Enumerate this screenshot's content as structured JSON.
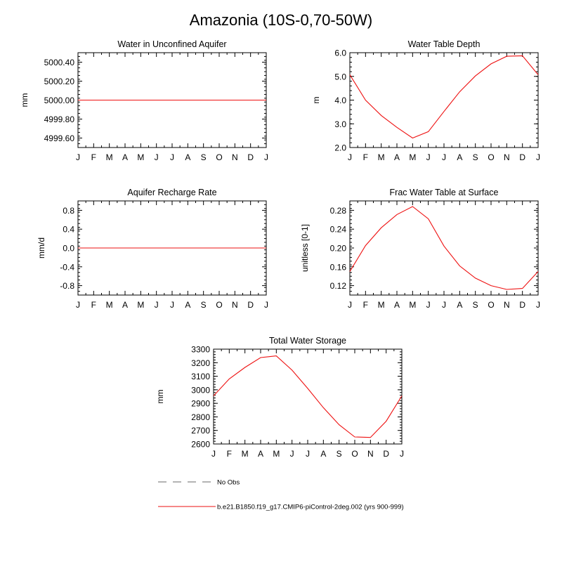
{
  "title": "Amazonia (10S-0,70-50W)",
  "colors": {
    "model": "#ee1111",
    "obs": "#888888",
    "axis": "#000000"
  },
  "chart_data": [
    {
      "type": "line",
      "title": "Water in Unconfined Aquifer",
      "ylabel": "mm",
      "ylim": [
        4999.5,
        5000.5
      ],
      "yticks": [
        "4999.60",
        "4999.80",
        "5000.00",
        "5000.20",
        "5000.40"
      ],
      "categories": [
        "J",
        "F",
        "M",
        "A",
        "M",
        "J",
        "J",
        "A",
        "S",
        "O",
        "N",
        "D",
        "J"
      ],
      "series": [
        {
          "values": [
            5000,
            5000,
            5000,
            5000,
            5000,
            5000,
            5000,
            5000,
            5000,
            5000,
            5000,
            5000,
            5000
          ]
        }
      ]
    },
    {
      "type": "line",
      "title": "Water Table Depth",
      "ylabel": "m",
      "ylim": [
        2.0,
        6.0
      ],
      "yticks": [
        "2.0",
        "3.0",
        "4.0",
        "5.0",
        "6.0"
      ],
      "categories": [
        "J",
        "F",
        "M",
        "A",
        "M",
        "J",
        "J",
        "A",
        "S",
        "O",
        "N",
        "D",
        "J"
      ],
      "series": [
        {
          "values": [
            5.07,
            4.0,
            3.35,
            2.85,
            2.4,
            2.67,
            3.52,
            4.35,
            5.02,
            5.53,
            5.85,
            5.87,
            5.07
          ]
        }
      ]
    },
    {
      "type": "line",
      "title": "Aquifer Recharge Rate",
      "ylabel": "mm/d",
      "ylim": [
        -1.0,
        1.0
      ],
      "yticks": [
        "-0.8",
        "-0.4",
        "0.0",
        "0.4",
        "0.8"
      ],
      "categories": [
        "J",
        "F",
        "M",
        "A",
        "M",
        "J",
        "J",
        "A",
        "S",
        "O",
        "N",
        "D",
        "J"
      ],
      "series": [
        {
          "values": [
            0,
            0,
            0,
            0,
            0,
            0,
            0,
            0,
            0,
            0,
            0,
            0,
            0
          ]
        }
      ]
    },
    {
      "type": "line",
      "title": "Frac Water Table at Surface",
      "ylabel": "unitless [0-1]",
      "ylim": [
        0.1,
        0.3
      ],
      "yticks": [
        "0.12",
        "0.16",
        "0.20",
        "0.24",
        "0.28"
      ],
      "categories": [
        "J",
        "F",
        "M",
        "A",
        "M",
        "J",
        "J",
        "A",
        "S",
        "O",
        "N",
        "D",
        "J"
      ],
      "series": [
        {
          "values": [
            0.15,
            0.205,
            0.243,
            0.271,
            0.288,
            0.262,
            0.204,
            0.162,
            0.136,
            0.12,
            0.112,
            0.114,
            0.15
          ]
        }
      ]
    },
    {
      "type": "line",
      "title": "Total Water Storage",
      "ylabel": "mm",
      "ylim": [
        2600,
        3300
      ],
      "yticks": [
        "2600",
        "2700",
        "2800",
        "2900",
        "3000",
        "3100",
        "3200",
        "3300"
      ],
      "categories": [
        "J",
        "F",
        "M",
        "A",
        "M",
        "J",
        "J",
        "A",
        "S",
        "O",
        "N",
        "D",
        "J"
      ],
      "series": [
        {
          "values": [
            2955,
            3080,
            3165,
            3238,
            3250,
            3145,
            3010,
            2868,
            2742,
            2652,
            2648,
            2768,
            2955
          ]
        }
      ]
    }
  ],
  "legend": {
    "obs_label": "No Obs",
    "model_label": "b.e21.B1850.f19_g17.CMIP6-piControl-2deg.002 (yrs 900-999)"
  }
}
